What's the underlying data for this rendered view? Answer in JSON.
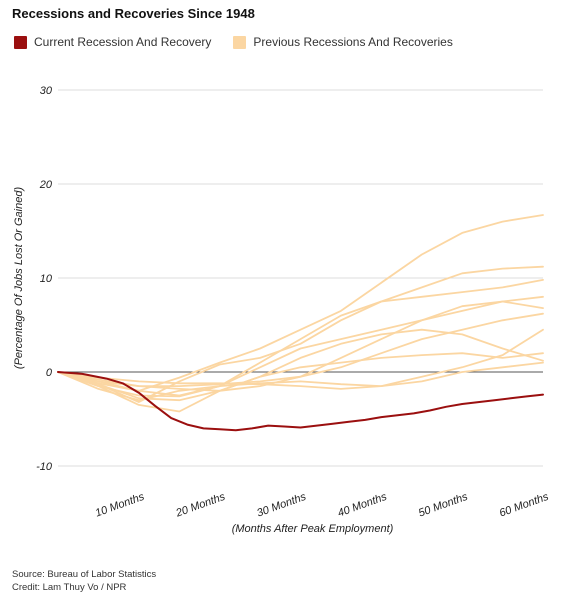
{
  "title": "Recessions and Recoveries Since 1948",
  "legend": [
    {
      "label": "Current Recession And Recovery",
      "color": "#9b0f0f"
    },
    {
      "label": "Previous Recessions And Recoveries",
      "color": "#fbd6a2"
    }
  ],
  "source": "Source: Bureau of Labor Statistics",
  "credit": "Credit: Lam Thuy Vo / NPR",
  "chart_data": {
    "type": "line",
    "xlabel": "(Months After Peak Employment)",
    "ylabel": "(Percentage Of Jobs Lost Or Gained)",
    "xlim": [
      0,
      60
    ],
    "ylim": [
      -10,
      30
    ],
    "yticks": [
      -10,
      0,
      10,
      20,
      30
    ],
    "xticks": [
      {
        "value": 10,
        "label": "10 Months"
      },
      {
        "value": 20,
        "label": "20 Months"
      },
      {
        "value": 30,
        "label": "30 Months"
      },
      {
        "value": 40,
        "label": "40 Months"
      },
      {
        "value": 50,
        "label": "50 Months"
      },
      {
        "value": 60,
        "label": "60 Months"
      }
    ],
    "grid": true,
    "series": [
      {
        "group": "current",
        "x": [
          0,
          3,
          6,
          8,
          10,
          12,
          14,
          16,
          18,
          20,
          22,
          24,
          26,
          28,
          30,
          32,
          34,
          36,
          38,
          40,
          42,
          44,
          46,
          48,
          50,
          52,
          54,
          56,
          58,
          60
        ],
        "values": [
          0,
          -0.2,
          -0.7,
          -1.2,
          -2.2,
          -3.6,
          -4.9,
          -5.6,
          -6.0,
          -6.1,
          -6.2,
          -6.0,
          -5.7,
          -5.8,
          -5.9,
          -5.7,
          -5.5,
          -5.3,
          -5.1,
          -4.8,
          -4.6,
          -4.4,
          -4.1,
          -3.7,
          -3.4,
          -3.2,
          -3.0,
          -2.8,
          -2.6,
          -2.4
        ]
      },
      {
        "group": "previous",
        "x": [
          0,
          5,
          10,
          15,
          20,
          25,
          30,
          35,
          40,
          45,
          50,
          55,
          60
        ],
        "values": [
          0,
          -1.0,
          -2.0,
          -0.6,
          1.0,
          2.5,
          4.5,
          6.5,
          9.5,
          12.5,
          14.8,
          16.0,
          16.7
        ]
      },
      {
        "group": "previous",
        "x": [
          0,
          5,
          10,
          15,
          20,
          25,
          30,
          35,
          40,
          45,
          50,
          55,
          60
        ],
        "values": [
          0,
          -1.3,
          -3.2,
          -1.0,
          0.8,
          1.5,
          3.0,
          5.5,
          7.5,
          9.0,
          10.5,
          11.0,
          11.2
        ]
      },
      {
        "group": "previous",
        "x": [
          0,
          5,
          10,
          15,
          20,
          25,
          30,
          35,
          40,
          45,
          50,
          55,
          60
        ],
        "values": [
          0,
          -1.5,
          -2.5,
          -2.6,
          -1.5,
          1.0,
          3.5,
          6.0,
          7.5,
          8.0,
          8.5,
          9.0,
          9.8
        ]
      },
      {
        "group": "previous",
        "x": [
          0,
          5,
          10,
          15,
          20,
          25,
          30,
          35,
          40,
          45,
          50,
          55,
          60
        ],
        "values": [
          0,
          -0.8,
          -1.5,
          -1.8,
          -2.0,
          -1.5,
          -0.5,
          1.5,
          3.5,
          5.5,
          6.5,
          7.5,
          8.0
        ]
      },
      {
        "group": "previous",
        "x": [
          0,
          5,
          10,
          15,
          20,
          25,
          30,
          35,
          40,
          45,
          50,
          55,
          60
        ],
        "values": [
          0,
          -1.2,
          -2.0,
          -2.5,
          -1.5,
          0.5,
          2.5,
          3.5,
          4.5,
          5.5,
          7.0,
          7.5,
          6.8
        ]
      },
      {
        "group": "previous",
        "x": [
          0,
          5,
          10,
          15,
          20,
          25,
          30,
          35,
          40,
          45,
          50,
          55,
          60
        ],
        "values": [
          0,
          -1.0,
          -1.5,
          -1.5,
          -1.3,
          -1.0,
          -0.5,
          0.5,
          2.0,
          3.5,
          4.5,
          5.5,
          6.2
        ]
      },
      {
        "group": "previous",
        "x": [
          0,
          5,
          10,
          15,
          20,
          25,
          30,
          35,
          40,
          45,
          50,
          55,
          60
        ],
        "values": [
          0,
          -1.5,
          -3.5,
          -4.2,
          -2.0,
          -0.5,
          1.5,
          3.0,
          4.0,
          4.5,
          4.0,
          2.5,
          1.2
        ]
      },
      {
        "group": "previous",
        "x": [
          0,
          5,
          10,
          15,
          20,
          25,
          30,
          35,
          40,
          45,
          50,
          55,
          60
        ],
        "values": [
          0,
          -0.6,
          -1.0,
          -1.2,
          -1.2,
          -1.3,
          -1.5,
          -1.8,
          -1.5,
          -0.5,
          0.5,
          1.8,
          4.5
        ]
      },
      {
        "group": "previous",
        "x": [
          0,
          5,
          10,
          15,
          20,
          25,
          30,
          35,
          40,
          45,
          50,
          55,
          60
        ],
        "values": [
          0,
          -1.8,
          -3.0,
          -2.0,
          -1.5,
          -1.2,
          -1.0,
          -1.3,
          -1.5,
          -1.0,
          0.0,
          0.5,
          1.0
        ]
      },
      {
        "group": "previous",
        "x": [
          0,
          5,
          10,
          15,
          20,
          25,
          30,
          35,
          40,
          45,
          50,
          55,
          60
        ],
        "values": [
          0,
          -1.3,
          -2.8,
          -3.0,
          -2.0,
          -0.5,
          0.5,
          1.0,
          1.5,
          1.8,
          2.0,
          1.5,
          2.0
        ]
      }
    ]
  }
}
